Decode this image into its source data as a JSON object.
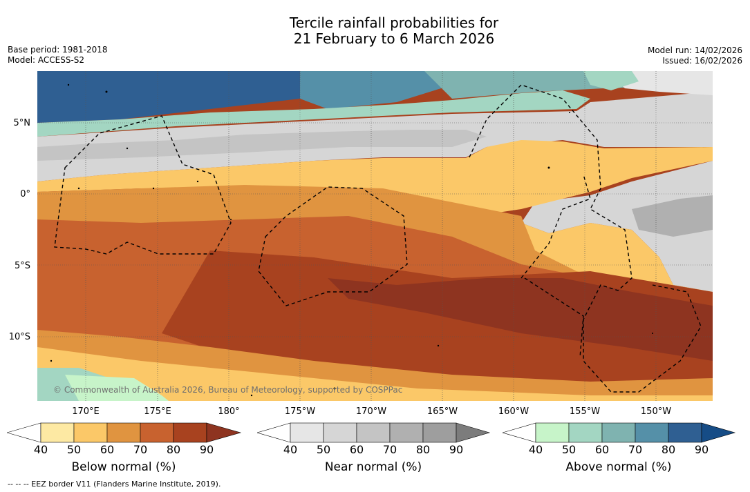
{
  "title_line1": "Tercile rainfall probabilities for",
  "title_line2": "21 February to 6 March 2026",
  "meta_left": {
    "base_period": "Base period: 1981-2018",
    "model": "Model: ACCESS-S2"
  },
  "meta_right": {
    "model_run": "Model run: 14/02/2026",
    "issued": "Issued: 16/02/2026"
  },
  "lat_labels": [
    "5°N",
    "0°",
    "5°S",
    "10°S"
  ],
  "lon_labels": [
    "170°E",
    "175°E",
    "180°",
    "175°W",
    "170°W",
    "165°W",
    "160°W",
    "155°W",
    "150°W"
  ],
  "copyright": "© Commonwealth of Australia 2026, Bureau of Meteorology, supported by COSPPac",
  "footnote": "--  --  -- EEZ border V11 (Flanders Marine Institute, 2019).",
  "colorbars": {
    "below": {
      "label": "Below normal (%)",
      "ticks": [
        "40",
        "50",
        "60",
        "70",
        "80",
        "90"
      ],
      "colors": [
        "#ffffff",
        "#fde9a3",
        "#fbc868",
        "#e09440",
        "#c8622f",
        "#a8421f",
        "#8e3420"
      ]
    },
    "near": {
      "label": "Near normal (%)",
      "ticks": [
        "40",
        "50",
        "60",
        "70",
        "80",
        "90"
      ],
      "colors": [
        "#ffffff",
        "#e6e6e6",
        "#d6d6d6",
        "#c4c4c4",
        "#b0b0b0",
        "#9e9e9e",
        "#7c7c7c"
      ]
    },
    "above": {
      "label": "Above normal (%)",
      "ticks": [
        "40",
        "50",
        "60",
        "70",
        "80",
        "90"
      ],
      "colors": [
        "#ffffff",
        "#c7f4c9",
        "#a3d6c2",
        "#7fb3b0",
        "#5590a8",
        "#2f5f92",
        "#164c86"
      ]
    }
  }
}
